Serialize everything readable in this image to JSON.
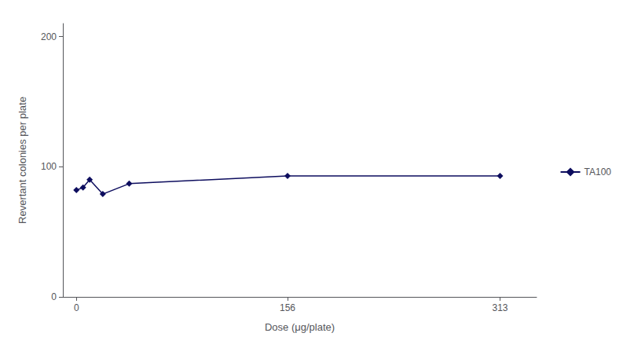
{
  "chart_data": {
    "type": "line",
    "xlabel": "Dose (μg/plate)",
    "ylabel": "Revertant colonies per plate",
    "x": [
      0,
      4.9,
      9.8,
      19.5,
      39,
      156,
      313
    ],
    "series": [
      {
        "name": "TA100",
        "color": "#0d0d5e",
        "marker": "diamond",
        "values": [
          82,
          84,
          90,
          79,
          87,
          93,
          93
        ]
      }
    ],
    "xlim": [
      -10,
      340
    ],
    "xticks": [
      0,
      156,
      313
    ],
    "ylim": [
      0,
      210
    ],
    "yticks": [
      0,
      100,
      200
    ],
    "legend": "right",
    "grid": false
  }
}
